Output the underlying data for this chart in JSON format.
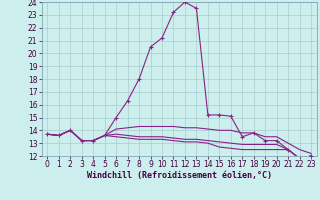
{
  "xlabel": "Windchill (Refroidissement éolien,°C)",
  "x": [
    0,
    1,
    2,
    3,
    4,
    5,
    6,
    7,
    8,
    9,
    10,
    11,
    12,
    13,
    14,
    15,
    16,
    17,
    18,
    19,
    20,
    21,
    22,
    23
  ],
  "series": [
    [
      13.7,
      13.6,
      14.0,
      13.2,
      13.2,
      13.6,
      15.0,
      16.3,
      18.0,
      20.5,
      21.2,
      23.2,
      24.0,
      23.5,
      15.2,
      15.2,
      15.1,
      13.5,
      13.8,
      13.2,
      13.2,
      12.5,
      11.8,
      12.0
    ],
    [
      13.7,
      13.6,
      14.0,
      13.2,
      13.2,
      13.6,
      14.1,
      14.2,
      14.3,
      14.3,
      14.3,
      14.3,
      14.2,
      14.2,
      14.1,
      14.0,
      14.0,
      13.8,
      13.8,
      13.5,
      13.5,
      13.0,
      12.5,
      12.2
    ],
    [
      13.7,
      13.6,
      14.0,
      13.2,
      13.2,
      13.6,
      13.7,
      13.6,
      13.5,
      13.5,
      13.5,
      13.4,
      13.3,
      13.3,
      13.2,
      13.1,
      13.0,
      12.9,
      12.9,
      12.9,
      12.9,
      12.5,
      11.8,
      12.0
    ],
    [
      13.7,
      13.6,
      14.0,
      13.2,
      13.2,
      13.6,
      13.5,
      13.4,
      13.3,
      13.3,
      13.3,
      13.2,
      13.1,
      13.1,
      13.0,
      12.7,
      12.6,
      12.5,
      12.5,
      12.5,
      12.5,
      12.5,
      11.8,
      12.0
    ]
  ],
  "line_color": "#882288",
  "bg_color": "#cceeed",
  "grid_color": "#aacccc",
  "ylim": [
    12,
    24
  ],
  "xlim_min": -0.5,
  "xlim_max": 23.5,
  "yticks": [
    12,
    13,
    14,
    15,
    16,
    17,
    18,
    19,
    20,
    21,
    22,
    23,
    24
  ],
  "xticks": [
    0,
    1,
    2,
    3,
    4,
    5,
    6,
    7,
    8,
    9,
    10,
    11,
    12,
    13,
    14,
    15,
    16,
    17,
    18,
    19,
    20,
    21,
    22,
    23
  ],
  "tick_fontsize": 5.5,
  "xlabel_fontsize": 6.0,
  "lw": 0.8,
  "marker_size": 3.0
}
